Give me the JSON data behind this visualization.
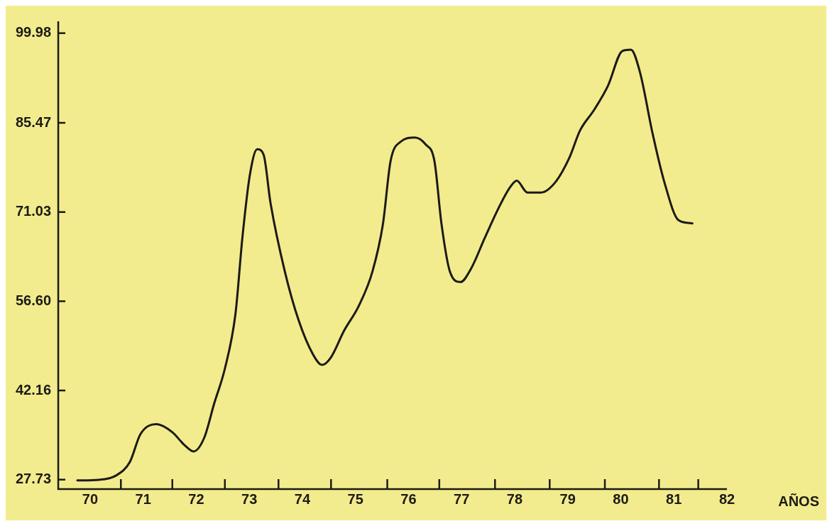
{
  "chart_data": {
    "type": "line",
    "xlabel": "AÑOS",
    "x": [
      69.76,
      70.16,
      70.49,
      70.75,
      70.95,
      71.25,
      71.55,
      71.77,
      71.95,
      72.15,
      72.34,
      72.54,
      72.74,
      72.87,
      73.01,
      73.15,
      73.27,
      73.4,
      73.67,
      73.93,
      74.2,
      74.37,
      74.53,
      74.79,
      75.06,
      75.32,
      75.52,
      75.66,
      75.85,
      76.12,
      76.32,
      76.49,
      76.62,
      76.78,
      76.98,
      77.18,
      77.44,
      77.71,
      77.91,
      78.04,
      78.24,
      78.5,
      78.77,
      79.03,
      79.23,
      79.5,
      79.76,
      80.03,
      80.19,
      80.36,
      80.6,
      80.82,
      81.09,
      81.35
    ],
    "series": [
      {
        "color": "#1c1a14",
        "values": [
          27.6,
          27.7,
          28.4,
          30.6,
          35.1,
          36.7,
          35.4,
          33.4,
          32.3,
          34.5,
          40.1,
          45.7,
          54.6,
          66.9,
          77.0,
          81.2,
          80.3,
          72.5,
          61.4,
          53.5,
          48.0,
          46.3,
          47.4,
          51.9,
          55.8,
          61.4,
          69.2,
          79.2,
          82.4,
          83.1,
          82.0,
          79.2,
          69.2,
          61.4,
          59.7,
          61.9,
          66.9,
          71.9,
          75.0,
          76.1,
          74.2,
          74.2,
          75.9,
          79.8,
          84.2,
          87.6,
          91.5,
          97.1,
          97.3,
          93.7,
          83.7,
          75.9,
          69.7,
          69.2
        ]
      }
    ],
    "xlim": [
      69.4,
      82
    ],
    "xticks": [
      70,
      {
        "value": 70.58,
        "label": null
      },
      71,
      {
        "value": 71.55,
        "label": null
      },
      72,
      {
        "value": 72.54,
        "label": null
      },
      73,
      {
        "value": 73.55,
        "label": null
      },
      74,
      {
        "value": 74.54,
        "label": null
      },
      75,
      {
        "value": 75.6,
        "label": null
      },
      76,
      {
        "value": 76.58,
        "label": null
      },
      77,
      {
        "value": 77.63,
        "label": null
      },
      78,
      {
        "value": 78.66,
        "label": null
      },
      79,
      {
        "value": 79.7,
        "label": null
      },
      80,
      {
        "value": 80.72,
        "label": null
      },
      81,
      {
        "value": 81.46,
        "label": null
      },
      82
    ],
    "ylim": [
      26.2,
      101.9
    ],
    "yticks": [
      27.73,
      42.16,
      {
        "value": 56.6,
        "label": "56.60"
      },
      71.03,
      85.47,
      99.98
    ],
    "grid": false,
    "legend": false,
    "marker": "none",
    "line_style": "solid"
  }
}
